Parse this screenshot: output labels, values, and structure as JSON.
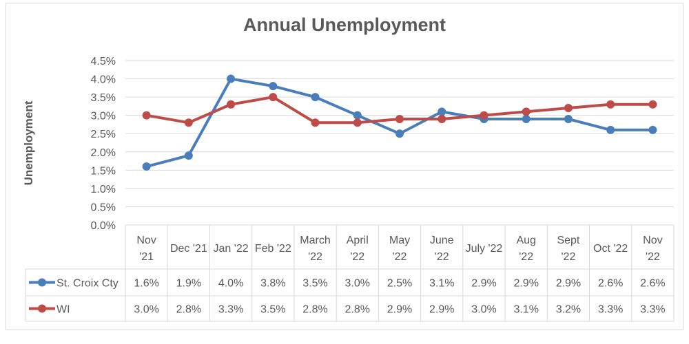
{
  "chart_data": {
    "type": "line",
    "title": "Annual Unemployment",
    "ylabel": "Unemployment",
    "xlabel": "",
    "ylim": [
      0,
      4.5
    ],
    "yticks": [
      "0.0%",
      "0.5%",
      "1.0%",
      "1.5%",
      "2.0%",
      "2.5%",
      "3.0%",
      "3.5%",
      "4.0%",
      "4.5%"
    ],
    "grid": true,
    "legend": "data-table",
    "categories": [
      [
        "Nov",
        "'21"
      ],
      [
        "Dec '21"
      ],
      [
        "Jan '22"
      ],
      [
        "Feb '22"
      ],
      [
        "March",
        "'22"
      ],
      [
        "April",
        "'22"
      ],
      [
        "May",
        "'22"
      ],
      [
        "June",
        "'22"
      ],
      [
        "July '22"
      ],
      [
        "Aug",
        "'22"
      ],
      [
        "Sept",
        "'22"
      ],
      [
        "Oct '22"
      ],
      [
        "Nov",
        "'22"
      ]
    ],
    "series": [
      {
        "name": "St. Croix Cty",
        "color": "#4a7ebb",
        "values": [
          1.6,
          1.9,
          4.0,
          3.8,
          3.5,
          3.0,
          2.5,
          3.1,
          2.9,
          2.9,
          2.9,
          2.6,
          2.6
        ],
        "labels": [
          "1.6%",
          "1.9%",
          "4.0%",
          "3.8%",
          "3.5%",
          "3.0%",
          "2.5%",
          "3.1%",
          "2.9%",
          "2.9%",
          "2.9%",
          "2.6%",
          "2.6%"
        ]
      },
      {
        "name": "WI",
        "color": "#be4b48",
        "values": [
          3.0,
          2.8,
          3.3,
          3.5,
          2.8,
          2.8,
          2.9,
          2.9,
          3.0,
          3.1,
          3.2,
          3.3,
          3.3
        ],
        "labels": [
          "3.0%",
          "2.8%",
          "3.3%",
          "3.5%",
          "2.8%",
          "2.8%",
          "2.9%",
          "2.9%",
          "3.0%",
          "3.1%",
          "3.2%",
          "3.3%",
          "3.3%"
        ]
      }
    ]
  }
}
